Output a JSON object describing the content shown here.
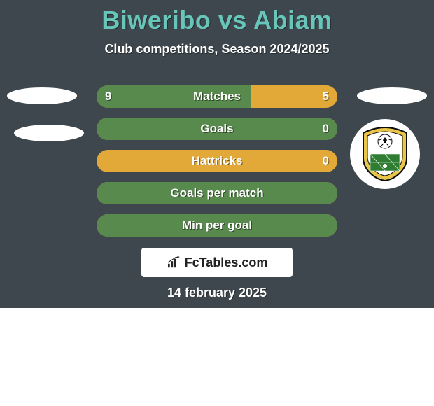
{
  "header": {
    "title": "Biweribo vs Abiam",
    "subtitle": "Club competitions, Season 2024/2025"
  },
  "colors": {
    "card_bg": "#3d474d",
    "accent_title": "#67c5b9",
    "bar_green": "#588a4e",
    "bar_orange": "#e2a838",
    "text_white": "#ffffff",
    "brand_bg": "#ffffff",
    "brand_text": "#222222"
  },
  "bars": [
    {
      "label": "Matches",
      "left": "9",
      "right": "5",
      "fill_pct": 64
    },
    {
      "label": "Goals",
      "left": "",
      "right": "0",
      "fill_pct": 100
    },
    {
      "label": "Hattricks",
      "left": "",
      "right": "0",
      "fill_pct": 0
    },
    {
      "label": "Goals per match",
      "left": "",
      "right": "",
      "fill_pct": 100
    },
    {
      "label": "Min per goal",
      "left": "",
      "right": "",
      "fill_pct": 100
    }
  ],
  "brand": {
    "text": "FcTables.com"
  },
  "date": "14 february 2025",
  "crest": {
    "ring_outer": "#0a0a0a",
    "ring_gold": "#e9c64a",
    "field_green": "#2f7d33",
    "ball_white": "#ffffff"
  }
}
